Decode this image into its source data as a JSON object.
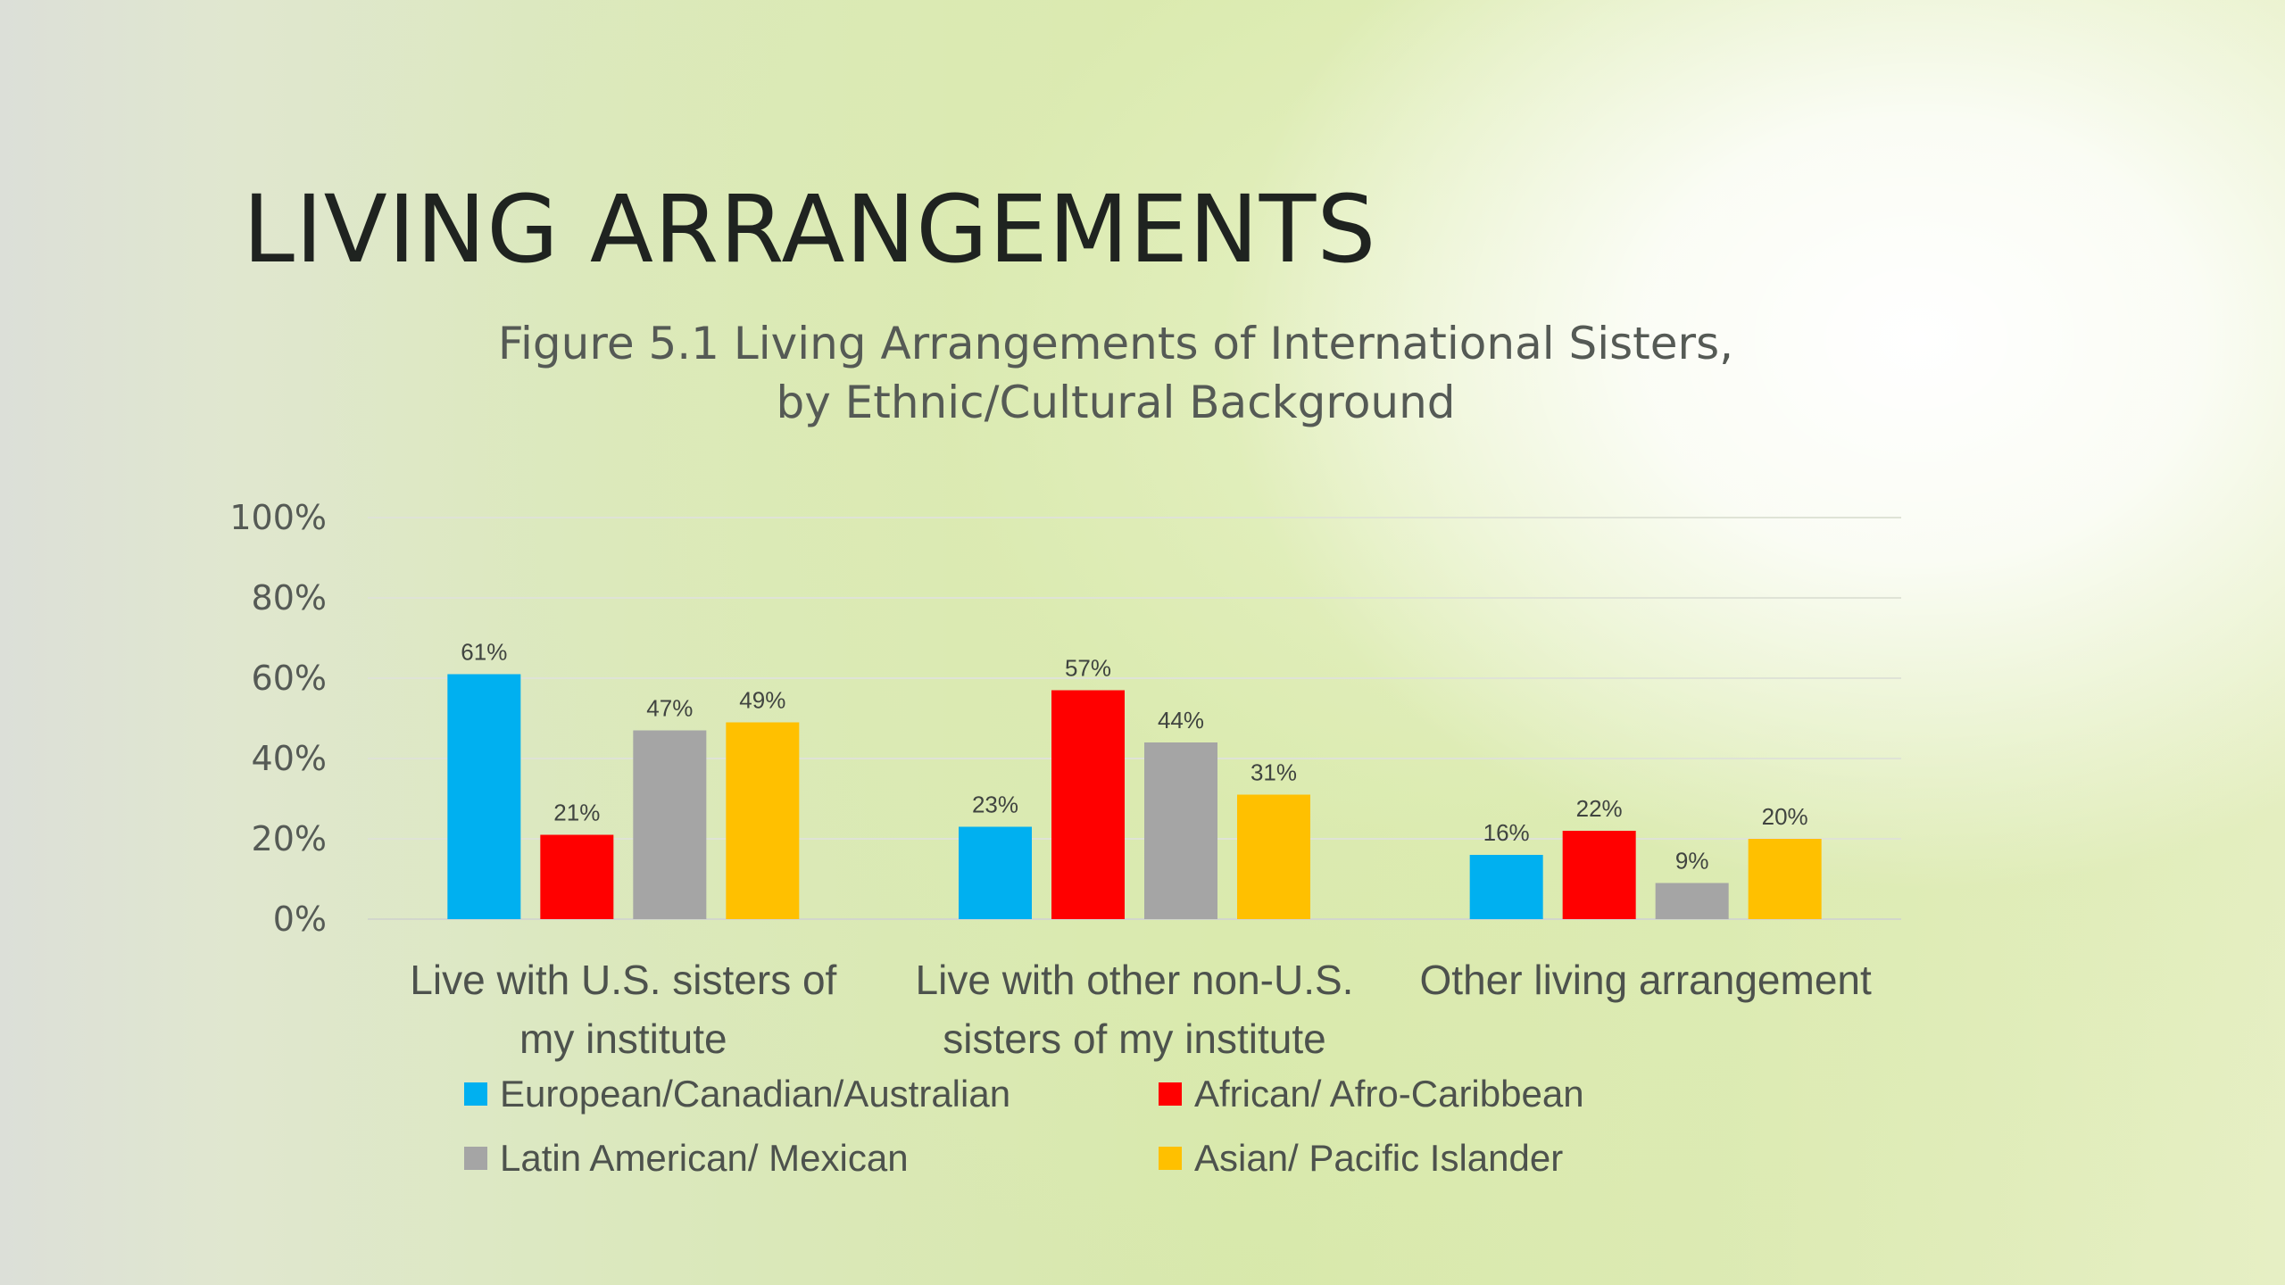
{
  "slide": {
    "title": "LIVING ARRANGEMENTS"
  },
  "chart_data": {
    "type": "bar",
    "title_lines": [
      "Figure 5.1  Living Arrangements of International Sisters,",
      "by Ethnic/Cultural Background"
    ],
    "categories": [
      [
        "Live with U.S. sisters of",
        "my institute"
      ],
      [
        "Live with other non-U.S.",
        "sisters of my institute"
      ],
      [
        "Other living arrangement"
      ]
    ],
    "series": [
      {
        "name": "European/Canadian/Australian",
        "color": "#00b0f0",
        "values": [
          61,
          23,
          16
        ],
        "labels": [
          "61%",
          "23%",
          "16%"
        ]
      },
      {
        "name": "African/ Afro-Caribbean",
        "color": "#ff0000",
        "values": [
          21,
          57,
          22
        ],
        "labels": [
          "21%",
          "57%",
          "22%"
        ]
      },
      {
        "name": "Latin American/ Mexican",
        "color": "#a5a5a5",
        "values": [
          47,
          44,
          9
        ],
        "labels": [
          "47%",
          "44%",
          "9%"
        ]
      },
      {
        "name": "Asian/ Pacific Islander",
        "color": "#ffc000",
        "values": [
          49,
          31,
          20
        ],
        "labels": [
          "49%",
          "31%",
          "20%"
        ]
      }
    ],
    "ylim": [
      0,
      100
    ],
    "y_ticks": [
      0,
      20,
      40,
      60,
      80,
      100
    ],
    "y_tick_labels": [
      "0%",
      "20%",
      "40%",
      "60%",
      "80%",
      "100%"
    ],
    "grid": true,
    "legend_position": "bottom"
  }
}
